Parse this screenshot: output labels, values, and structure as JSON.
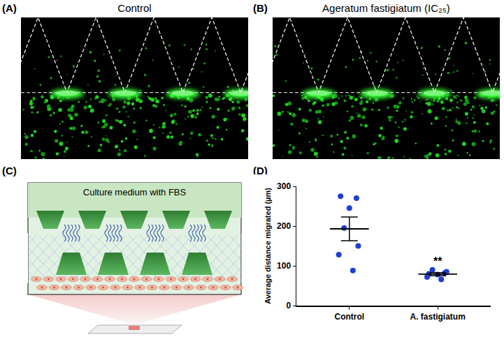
{
  "figure": {
    "panels": [
      {
        "letter": "(A)",
        "title": "Control"
      },
      {
        "letter": "(B)",
        "title": "Ageratum fastigiatum (IC₂₅)"
      },
      {
        "letter": "(C)",
        "text": "Culture medium with FBS"
      },
      {
        "letter": "(D)"
      }
    ]
  },
  "chart_data": {
    "type": "scatter",
    "y_label": "Average distance migrated (µm)",
    "categories": [
      "Control",
      "A. fastigiatum"
    ],
    "values": [
      [
        275,
        270,
        245,
        195,
        150,
        128,
        88
      ],
      [
        80,
        82,
        78,
        90,
        85,
        72,
        66
      ]
    ],
    "mean": [
      193,
      79
    ],
    "sem": [
      30,
      4
    ],
    "color": "#1f3fd0",
    "marker": "circle",
    "ylim": [
      0,
      300
    ],
    "yticks": [
      0,
      100,
      200,
      300
    ],
    "grid": false,
    "annotations": [
      {
        "category": "A. fastigiatum",
        "text": "**"
      }
    ]
  }
}
